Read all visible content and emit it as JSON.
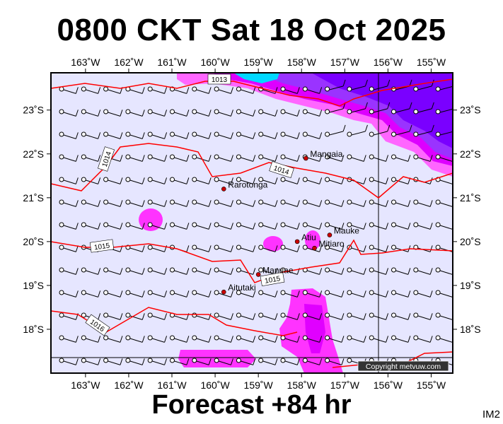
{
  "header": {
    "title": "0800 CKT Sat 18 Oct 2025",
    "subtitle": "Forecast +84 hr",
    "corner_code": "IM2"
  },
  "map": {
    "lon_range": [
      -163.8,
      -154.5
    ],
    "lat_range": [
      -23.85,
      -17.0
    ],
    "lon_ticks": [
      "163˚W",
      "162˚W",
      "161˚W",
      "160˚W",
      "159˚W",
      "158˚W",
      "157˚W",
      "156˚W",
      "155˚W"
    ],
    "lat_ticks": [
      "18˚S",
      "19˚S",
      "20˚S",
      "21˚S",
      "22˚S",
      "23˚S"
    ],
    "isobar_labels": [
      "1013",
      "1014",
      "1014",
      "1015",
      "1015",
      "1016"
    ],
    "places": [
      {
        "name": "Aitutaki",
        "lon": -159.8,
        "lat": -18.85
      },
      {
        "name": "Manuae",
        "lon": -159.0,
        "lat": -19.25
      },
      {
        "name": "Mitiaro",
        "lon": -157.7,
        "lat": -19.85
      },
      {
        "name": "Atiu",
        "lon": -158.1,
        "lat": -20.0
      },
      {
        "name": "Mauke",
        "lon": -157.35,
        "lat": -20.15
      },
      {
        "name": "Rarotonga",
        "lon": -159.8,
        "lat": -21.2
      },
      {
        "name": "Mangaia",
        "lon": -157.9,
        "lat": -21.9
      }
    ],
    "copyright": "Copyright metvuw.com",
    "colors": {
      "background": "#e6e6ff",
      "isobar": "#ff0000",
      "rain_light": "#ff00ff",
      "rain_medium": "#cc00ff",
      "rain_heavy": "#7a00ff",
      "rain_extreme": "#00ffff"
    }
  }
}
